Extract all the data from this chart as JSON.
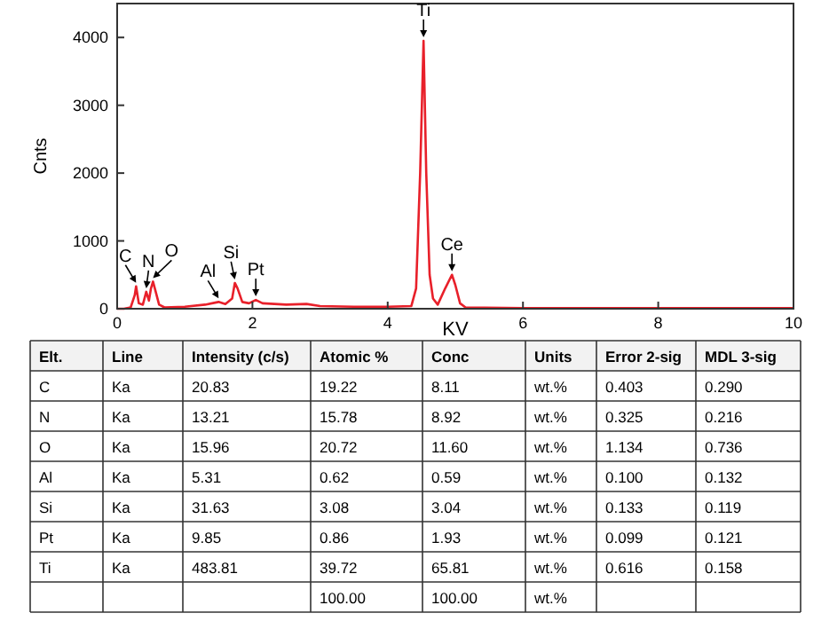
{
  "chart_data": [
    {
      "type": "line",
      "xlabel": "KV",
      "ylabel": "Cnts",
      "xlim": [
        0,
        10
      ],
      "ylim": [
        0,
        4500
      ],
      "xticks": [
        0,
        2,
        4,
        6,
        8,
        10
      ],
      "yticks": [
        0,
        1000,
        2000,
        3000,
        4000
      ],
      "grid": false,
      "marker": "none",
      "line_style": "solid",
      "series": [
        {
          "color": "#e8202a",
          "x": [
            0,
            0.1,
            0.2,
            0.26,
            0.28,
            0.32,
            0.38,
            0.43,
            0.47,
            0.5,
            0.53,
            0.57,
            0.62,
            0.7,
            1.0,
            1.3,
            1.45,
            1.5,
            1.6,
            1.7,
            1.74,
            1.78,
            1.85,
            1.95,
            2.05,
            2.15,
            2.5,
            2.8,
            3.0,
            3.5,
            4.0,
            4.35,
            4.42,
            4.48,
            4.53,
            4.57,
            4.62,
            4.67,
            4.74,
            4.85,
            4.95,
            5.0,
            5.07,
            5.15,
            6,
            8,
            10
          ],
          "values": [
            0,
            0,
            20,
            200,
            330,
            80,
            60,
            250,
            120,
            300,
            400,
            250,
            60,
            20,
            30,
            60,
            90,
            100,
            70,
            150,
            380,
            300,
            100,
            80,
            130,
            80,
            60,
            70,
            40,
            30,
            30,
            40,
            300,
            2000,
            3950,
            2000,
            500,
            150,
            60,
            300,
            500,
            350,
            80,
            20,
            10,
            10,
            10
          ]
        }
      ],
      "annotations": [
        {
          "text": "C",
          "x": 0.28,
          "y": 330
        },
        {
          "text": "N",
          "x": 0.43,
          "y": 250
        },
        {
          "text": "O",
          "x": 0.53,
          "y": 400
        },
        {
          "text": "Al",
          "x": 1.5,
          "y": 100
        },
        {
          "text": "Si",
          "x": 1.74,
          "y": 380
        },
        {
          "text": "Pt",
          "x": 2.05,
          "y": 130
        },
        {
          "text": "Ti",
          "x": 4.53,
          "y": 3950
        },
        {
          "text": "Ce",
          "x": 4.95,
          "y": 500
        }
      ]
    },
    {
      "type": "other",
      "categories": [
        "Elt.",
        "Line",
        "Intensity (c/s)",
        "Atomic %",
        "Conc",
        "Units",
        "Error 2-sig",
        "MDL 3-sig"
      ],
      "cell_labels": [
        [
          "C",
          "Ka",
          "20.83",
          "19.22",
          "8.11",
          "wt.%",
          "0.403",
          "0.290"
        ],
        [
          "N",
          "Ka",
          "13.21",
          "15.78",
          "8.92",
          "wt.%",
          "0.325",
          "0.216"
        ],
        [
          "O",
          "Ka",
          "15.96",
          "20.72",
          "11.60",
          "wt.%",
          "1.134",
          "0.736"
        ],
        [
          "Al",
          "Ka",
          "5.31",
          "0.62",
          "0.59",
          "wt.%",
          "0.100",
          "0.132"
        ],
        [
          "Si",
          "Ka",
          "31.63",
          "3.08",
          "3.04",
          "wt.%",
          "0.133",
          "0.119"
        ],
        [
          "Pt",
          "Ka",
          "9.85",
          "0.86",
          "1.93",
          "wt.%",
          "0.099",
          "0.121"
        ],
        [
          "Ti",
          "Ka",
          "483.81",
          "39.72",
          "65.81",
          "wt.%",
          "0.616",
          "0.158"
        ],
        [
          null,
          null,
          null,
          "100.00",
          "100.00",
          "wt.%",
          null,
          null
        ]
      ]
    }
  ]
}
